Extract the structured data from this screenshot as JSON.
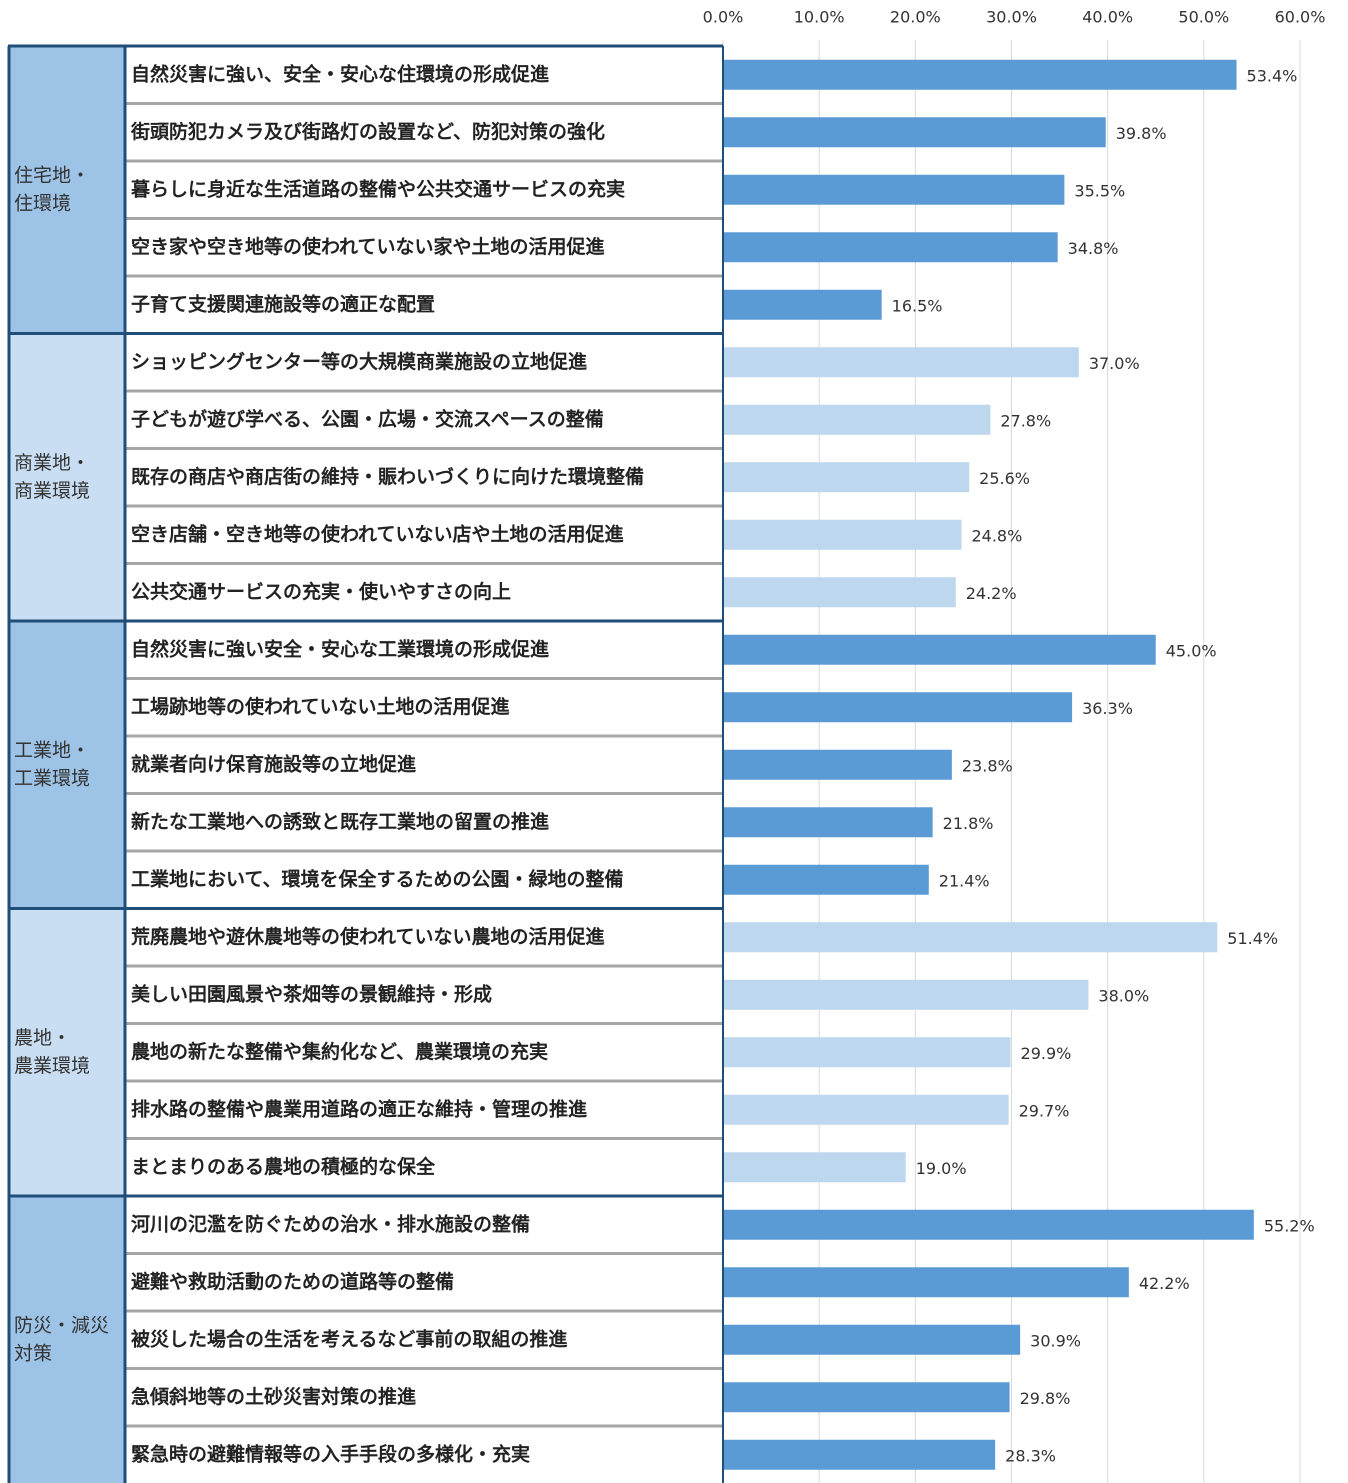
{
  "chart_data": {
    "type": "bar",
    "xlim": [
      0,
      60
    ],
    "xticks": [
      {
        "value": 0,
        "label": "0.0%"
      },
      {
        "value": 10,
        "label": "10.0%"
      },
      {
        "value": 20,
        "label": "20.0%"
      },
      {
        "value": 30,
        "label": "30.0%"
      },
      {
        "value": 40,
        "label": "40.0%"
      },
      {
        "value": 50,
        "label": "50.0%"
      },
      {
        "value": 60,
        "label": "60.0%"
      }
    ],
    "grid": true,
    "groups": [
      {
        "label": [
          "住宅地・",
          "住環境"
        ],
        "color": "#5b9bd5",
        "cell_color": "#9dc3e6",
        "categories": [
          "自然災害に強い、安全・安心な住環境の形成促進",
          "街頭防犯カメラ及び街路灯の設置など、防犯対策の強化",
          "暮らしに身近な生活道路の整備や公共交通サービスの充実",
          "空き家や空き地等の使われていない家や土地の活用促進",
          "子育て支援関連施設等の適正な配置"
        ],
        "values": [
          53.4,
          39.8,
          35.5,
          34.8,
          16.5
        ],
        "value_labels": [
          "53.4%",
          "39.8%",
          "35.5%",
          "34.8%",
          "16.5%"
        ]
      },
      {
        "label": [
          "商業地・",
          "商業環境"
        ],
        "color": "#bdd7ee",
        "cell_color": "#c9def2",
        "categories": [
          "ショッピングセンター等の大規模商業施設の立地促進",
          "子どもが遊び学べる、公園・広場・交流スペースの整備",
          "既存の商店や商店街の維持・賑わいづくりに向けた環境整備",
          "空き店舗・空き地等の使われていない店や土地の活用促進",
          "公共交通サービスの充実・使いやすさの向上"
        ],
        "values": [
          37.0,
          27.8,
          25.6,
          24.8,
          24.2
        ],
        "value_labels": [
          "37.0%",
          "27.8%",
          "25.6%",
          "24.8%",
          "24.2%"
        ]
      },
      {
        "label": [
          "工業地・",
          "工業環境"
        ],
        "color": "#5b9bd5",
        "cell_color": "#9dc3e6",
        "categories": [
          "自然災害に強い安全・安心な工業環境の形成促進",
          "工場跡地等の使われていない土地の活用促進",
          "就業者向け保育施設等の立地促進",
          "新たな工業地への誘致と既存工業地の留置の推進",
          "工業地において、環境を保全するための公園・緑地の整備"
        ],
        "values": [
          45.0,
          36.3,
          23.8,
          21.8,
          21.4
        ],
        "value_labels": [
          "45.0%",
          "36.3%",
          "23.8%",
          "21.8%",
          "21.4%"
        ]
      },
      {
        "label": [
          "農地・",
          "農業環境"
        ],
        "color": "#bdd7ee",
        "cell_color": "#c9def2",
        "categories": [
          "荒廃農地や遊休農地等の使われていない農地の活用促進",
          "美しい田園風景や茶畑等の景観維持・形成",
          "農地の新たな整備や集約化など、農業環境の充実",
          "排水路の整備や農業用道路の適正な維持・管理の推進",
          "まとまりのある農地の積極的な保全"
        ],
        "values": [
          51.4,
          38.0,
          29.9,
          29.7,
          19.0
        ],
        "value_labels": [
          "51.4%",
          "38.0%",
          "29.9%",
          "29.7%",
          "19.0%"
        ]
      },
      {
        "label": [
          "防災・減災",
          "対策"
        ],
        "color": "#5b9bd5",
        "cell_color": "#9dc3e6",
        "categories": [
          "河川の氾濫を防ぐための治水・排水施設の整備",
          "避難や救助活動のための道路等の整備",
          "被災した場合の生活を考えるなど事前の取組の推進",
          "急傾斜地等の土砂災害対策の推進",
          "緊急時の避難情報等の入手手段の多様化・充実"
        ],
        "values": [
          55.2,
          42.2,
          30.9,
          29.8,
          28.3
        ],
        "value_labels": [
          "55.2%",
          "42.2%",
          "30.9%",
          "29.8%",
          "28.3%"
        ]
      }
    ]
  }
}
